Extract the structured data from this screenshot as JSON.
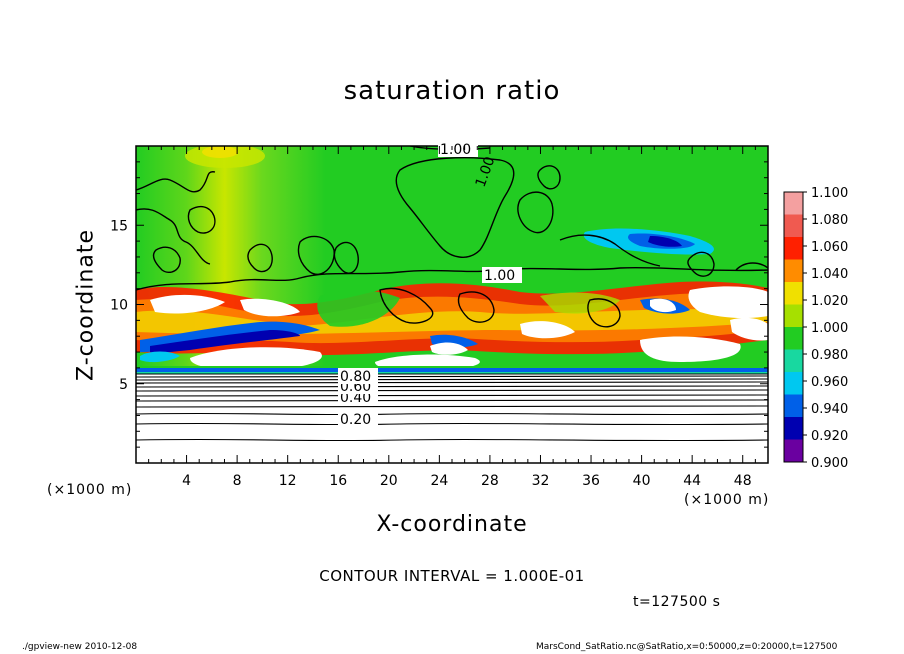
{
  "chart_data": {
    "type": "heatmap",
    "title": "saturation ratio",
    "xlabel": "X-coordinate",
    "ylabel": "Z-coordinate",
    "x_unit": "(×1000 m)",
    "z_unit": "(×1000 m)",
    "xlim": [
      0,
      50
    ],
    "ylim": [
      0,
      20
    ],
    "x_ticks": [
      4,
      8,
      12,
      16,
      20,
      24,
      28,
      32,
      36,
      40,
      44,
      48
    ],
    "y_ticks": [
      5,
      10,
      15
    ],
    "contour_interval": "CONTOUR INTERVAL = 1.000E-01",
    "contour_labels": [
      "0.20",
      "0.40",
      "0.60",
      "0.80",
      "1.00",
      "1.00",
      "1.00"
    ],
    "time_label": "t=127500 s",
    "colorbar": {
      "levels": [
        1.1,
        1.08,
        1.06,
        1.04,
        1.02,
        1.0,
        0.98,
        0.96,
        0.94,
        0.92,
        0.9
      ],
      "labels": [
        "1.100",
        "1.080",
        "1.060",
        "1.040",
        "1.020",
        "1.000",
        "0.980",
        "0.960",
        "0.940",
        "0.920",
        "0.900"
      ],
      "colors": [
        "#f4a0a0",
        "#f05a50",
        "#ff2000",
        "#ff8c00",
        "#f0e000",
        "#a6e000",
        "#22cc22",
        "#18d8a0",
        "#00c8f0",
        "#0060e8",
        "#0000b0",
        "#6a00a0"
      ]
    }
  },
  "footer": {
    "left": "./gpview-new  2010-12-08",
    "right": "MarsCond_SatRatio.nc@SatRatio,x=0:50000,z=0:20000,t=127500"
  }
}
